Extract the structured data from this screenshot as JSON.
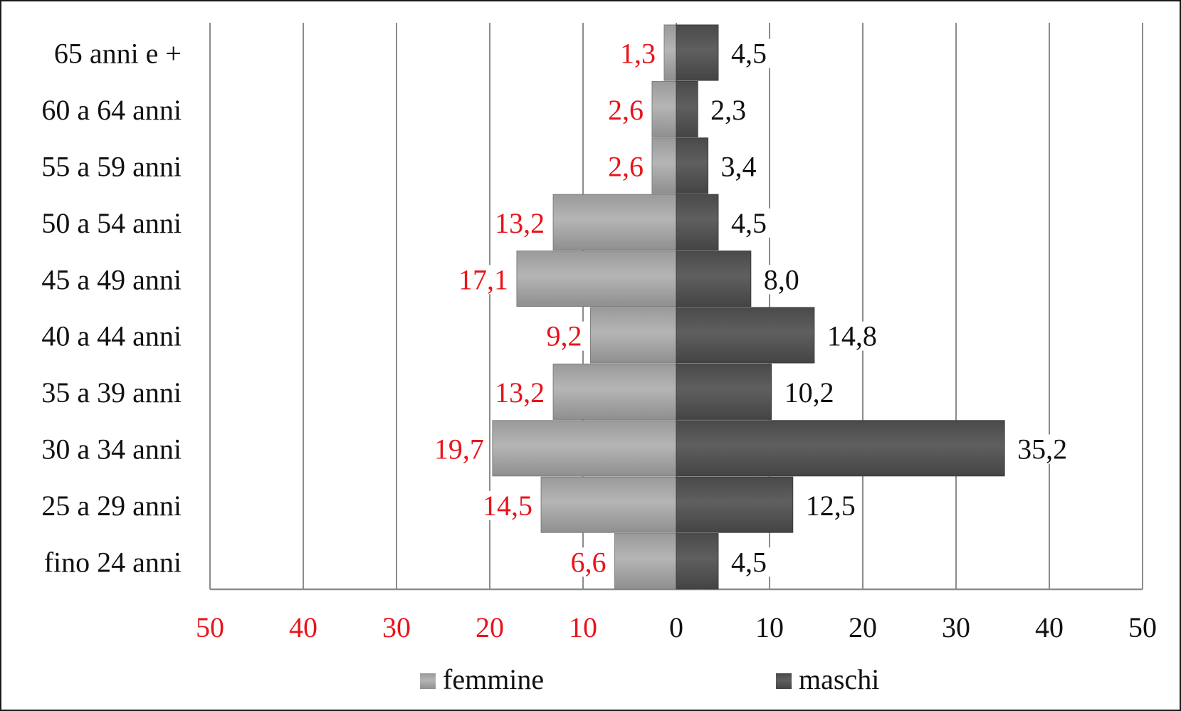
{
  "chart_data": {
    "type": "bar",
    "orientation": "horizontal",
    "layout": "population-pyramid",
    "categories": [
      "65 anni e +",
      "60 a 64 anni",
      "55 a 59 anni",
      "50 a 54 anni",
      "45 a 49 anni",
      "40 a 44 anni",
      "35 a 39 anni",
      "30 a 34 anni",
      "25 a 29 anni",
      "fino 24 anni"
    ],
    "series": [
      {
        "name": "femmine",
        "side": "left",
        "values": [
          1.3,
          2.6,
          2.6,
          13.2,
          17.1,
          9.2,
          13.2,
          19.7,
          14.5,
          6.6
        ],
        "labels": [
          "1,3",
          "2,6",
          "2,6",
          "13,2",
          "17,1",
          "9,2",
          "13,2",
          "19,7",
          "14,5",
          "6,6"
        ],
        "color": "#a3a3a3",
        "label_color": "#e8141b"
      },
      {
        "name": "maschi",
        "side": "right",
        "values": [
          4.5,
          2.3,
          3.4,
          4.5,
          8.0,
          14.8,
          10.2,
          35.2,
          12.5,
          4.5
        ],
        "labels": [
          "4,5",
          "2,3",
          "3,4",
          "4,5",
          "8,0",
          "14,8",
          "10,2",
          "35,2",
          "12,5",
          "4,5"
        ],
        "color": "#525252",
        "label_color": "#111111"
      }
    ],
    "x_ticks": [
      {
        "value": -50,
        "label": "50",
        "color": "#e8141b"
      },
      {
        "value": -40,
        "label": "40",
        "color": "#e8141b"
      },
      {
        "value": -30,
        "label": "30",
        "color": "#e8141b"
      },
      {
        "value": -20,
        "label": "20",
        "color": "#e8141b"
      },
      {
        "value": -10,
        "label": "10",
        "color": "#e8141b"
      },
      {
        "value": 0,
        "label": "0",
        "color": "#111111"
      },
      {
        "value": 10,
        "label": "10",
        "color": "#111111"
      },
      {
        "value": 20,
        "label": "20",
        "color": "#111111"
      },
      {
        "value": 30,
        "label": "30",
        "color": "#111111"
      },
      {
        "value": 40,
        "label": "40",
        "color": "#111111"
      },
      {
        "value": 50,
        "label": "50",
        "color": "#111111"
      }
    ],
    "xlim": [
      -50,
      50
    ],
    "grid": "vertical",
    "legend": {
      "placement": "bottom",
      "items": [
        "femmine",
        "maschi"
      ]
    },
    "title": "",
    "xlabel": "",
    "ylabel": ""
  }
}
